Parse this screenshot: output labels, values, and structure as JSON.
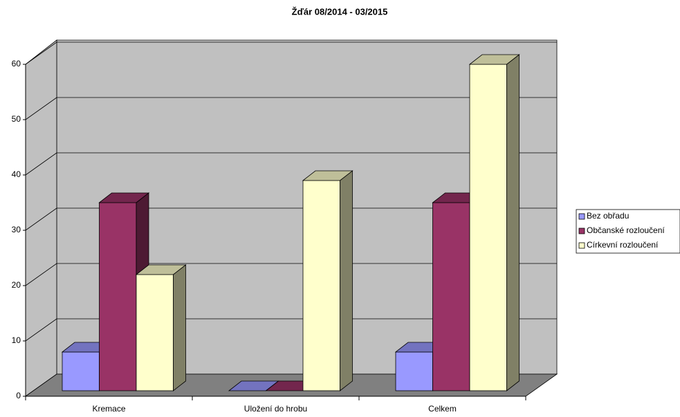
{
  "chart_data": {
    "type": "bar3d",
    "title": "Žďár 08/2014 - 03/2015",
    "categories": [
      "Kremace",
      "Uložení do hrobu",
      "Celkem"
    ],
    "series": [
      {
        "name": "Bez obřadu",
        "color": "#9999ff",
        "values": [
          7,
          0,
          7
        ]
      },
      {
        "name": "Občanské rozloučení",
        "color": "#993366",
        "values": [
          34,
          0,
          34
        ]
      },
      {
        "name": "Církevní rozloučení",
        "color": "#ffffcc",
        "values": [
          21,
          38,
          59
        ]
      }
    ],
    "ylim": [
      0,
      60
    ],
    "yticks": [
      0,
      10,
      20,
      30,
      40,
      50,
      60
    ],
    "grid": true,
    "legend": "right"
  }
}
